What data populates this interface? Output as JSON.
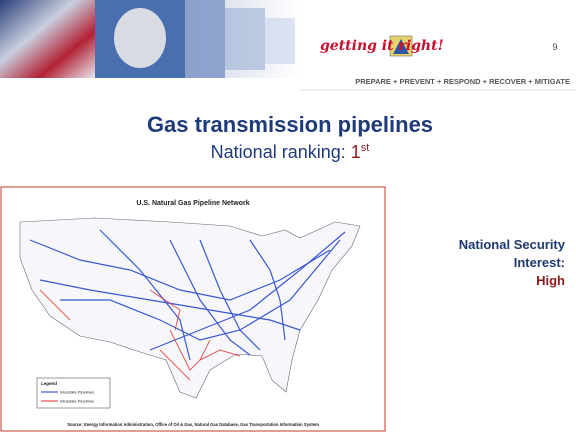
{
  "header": {
    "logo": "getting it right!",
    "page_number": "9",
    "tagline": "PREPARE + PREVENT + RESPOND + RECOVER + MITIGATE"
  },
  "title": "Gas transmission pipelines",
  "subtitle": {
    "text": "National ranking: ",
    "rank": "1",
    "suffix": "st"
  },
  "map": {
    "title": "U.S. Natural Gas Pipeline Network",
    "legend": {
      "title": "Legend",
      "items": [
        "Interstate Pipelines",
        "Intrastate Pipelines"
      ]
    },
    "source": "Source: Energy Information Administration, Office of Oil & Gas, Natural Gas Database, Gas Transportation Information System"
  },
  "side_note": {
    "lines": [
      "National Security",
      "Interest:"
    ],
    "level": "High"
  }
}
